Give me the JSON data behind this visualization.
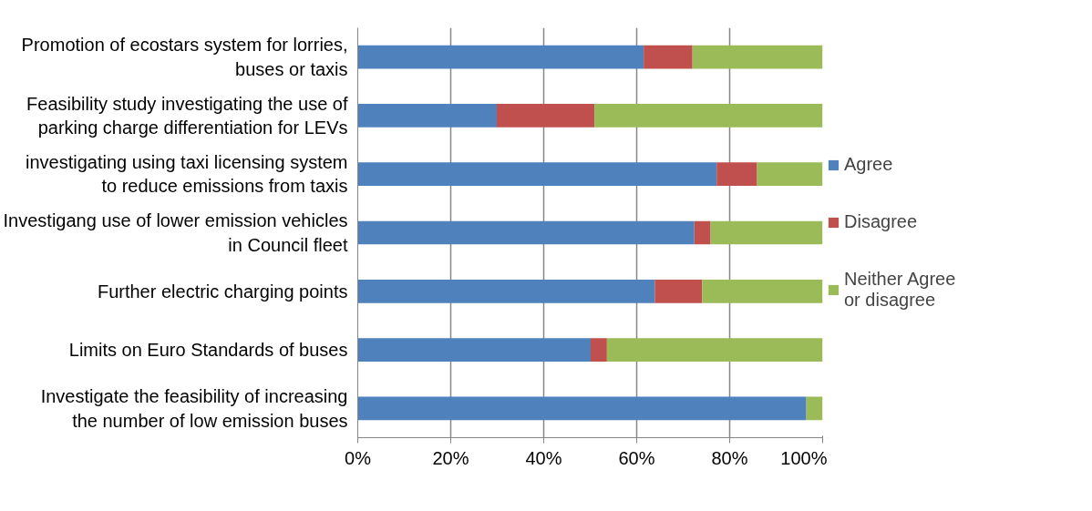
{
  "chart_data": {
    "type": "bar",
    "orientation": "horizontal",
    "stacked": true,
    "categories": [
      "Promotion of ecostars system for lorries, buses or taxis",
      "Feasibility study investigating the use of parking charge differentiation for LEVs",
      "investigating using taxi licensing system to reduce emissions from taxis",
      "Investigang use of lower emission vehicles in Council fleet",
      "Further electric charging points",
      "Limits on Euro Standards of buses",
      "Investigate the feasibility of increasing the number of low emission buses"
    ],
    "series": [
      {
        "name": "Agree",
        "color": "#4f81bd",
        "values": [
          61.5,
          29.9,
          77.2,
          72.4,
          63.9,
          50.1,
          96.5
        ]
      },
      {
        "name": "Disagree",
        "color": "#c0504d",
        "values": [
          10.5,
          21.0,
          8.7,
          3.5,
          10.2,
          3.5,
          0
        ]
      },
      {
        "name": "Neither Agree or disagree",
        "color": "#9bbb59",
        "values": [
          28.0,
          49.1,
          14.1,
          24.1,
          25.9,
          46.4,
          3.5
        ]
      }
    ],
    "xlim": [
      0,
      100
    ],
    "xticks": [
      {
        "value": 0,
        "label": "0%"
      },
      {
        "value": 20,
        "label": "20%"
      },
      {
        "value": 40,
        "label": "40%"
      },
      {
        "value": 60,
        "label": "60%"
      },
      {
        "value": 80,
        "label": "80%"
      },
      {
        "value": 100,
        "label": "100%"
      }
    ],
    "grid": "x",
    "legend": "right"
  }
}
